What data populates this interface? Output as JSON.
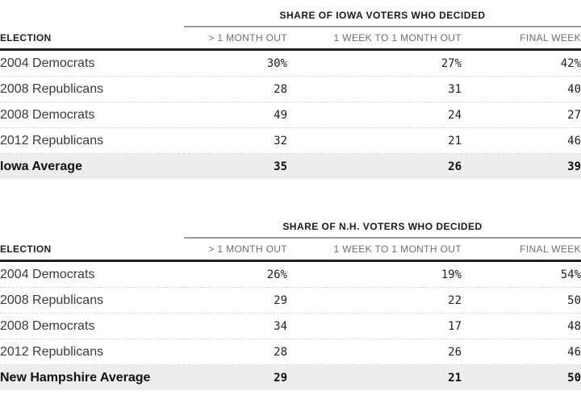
{
  "colors": {
    "span_rule": "#9b9b9b",
    "header_rule": "#1f1f1f",
    "row_divider": "#d9d9d9",
    "average_row_bg": "#ededed",
    "column_header_text": "#6e6e6e",
    "body_text": "#222222"
  },
  "tables": [
    {
      "span_title": "SHARE OF IOWA VOTERS WHO DECIDED",
      "columns": [
        "ELECTION",
        "> 1 MONTH OUT",
        "1 WEEK TO 1 MONTH OUT",
        "FINAL WEEK"
      ],
      "rows": [
        {
          "label": "2004 Democrats",
          "values": [
            "30%",
            "27%",
            "42%"
          ]
        },
        {
          "label": "2008 Republicans",
          "values": [
            "28",
            "31",
            "40"
          ]
        },
        {
          "label": "2008 Democrats",
          "values": [
            "49",
            "24",
            "27"
          ]
        },
        {
          "label": "2012 Republicans",
          "values": [
            "32",
            "21",
            "46"
          ]
        },
        {
          "label": "Iowa Average",
          "values": [
            "35",
            "26",
            "39"
          ]
        }
      ]
    },
    {
      "span_title": "SHARE OF N.H. VOTERS WHO DECIDED",
      "columns": [
        "ELECTION",
        "> 1 MONTH OUT",
        "1 WEEK TO 1 MONTH OUT",
        "FINAL WEEK"
      ],
      "rows": [
        {
          "label": "2004 Democrats",
          "values": [
            "26%",
            "19%",
            "54%"
          ]
        },
        {
          "label": "2008 Republicans",
          "values": [
            "29",
            "22",
            "50"
          ]
        },
        {
          "label": "2008 Democrats",
          "values": [
            "34",
            "17",
            "48"
          ]
        },
        {
          "label": "2012 Republicans",
          "values": [
            "28",
            "26",
            "46"
          ]
        },
        {
          "label": "New Hampshire Average",
          "values": [
            "29",
            "21",
            "50"
          ]
        }
      ]
    }
  ],
  "chart_data": [
    {
      "type": "table",
      "title": "SHARE OF IOWA VOTERS WHO DECIDED",
      "columns": [
        "ELECTION",
        "> 1 MONTH OUT",
        "1 WEEK TO 1 MONTH OUT",
        "FINAL WEEK"
      ],
      "units": "percent",
      "rows": [
        [
          "2004 Democrats",
          30,
          27,
          42
        ],
        [
          "2008 Republicans",
          28,
          31,
          40
        ],
        [
          "2008 Democrats",
          49,
          24,
          27
        ],
        [
          "2012 Republicans",
          32,
          21,
          46
        ],
        [
          "Iowa Average",
          35,
          26,
          39
        ]
      ]
    },
    {
      "type": "table",
      "title": "SHARE OF N.H. VOTERS WHO DECIDED",
      "columns": [
        "ELECTION",
        "> 1 MONTH OUT",
        "1 WEEK TO 1 MONTH OUT",
        "FINAL WEEK"
      ],
      "units": "percent",
      "rows": [
        [
          "2004 Democrats",
          26,
          19,
          54
        ],
        [
          "2008 Republicans",
          29,
          22,
          50
        ],
        [
          "2008 Democrats",
          34,
          17,
          48
        ],
        [
          "2012 Republicans",
          28,
          26,
          46
        ],
        [
          "New Hampshire Average",
          29,
          21,
          50
        ]
      ]
    }
  ]
}
